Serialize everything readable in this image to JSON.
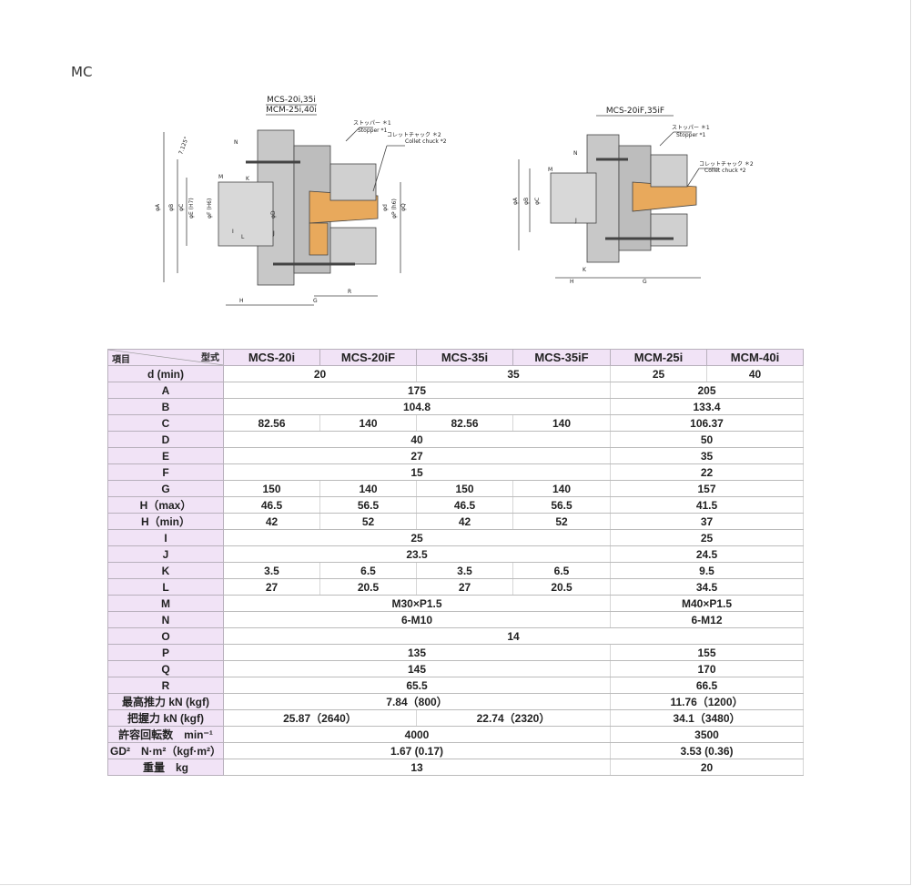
{
  "heading": "MC",
  "drawings": [
    {
      "titles": [
        "MCS-20i,35i",
        "MCM-25i,40i"
      ],
      "callouts": [
        "ストッパー ＊1",
        "Stopper *1",
        "コレットチャック ＊2",
        "Collet chuck *2"
      ],
      "dims": [
        "N",
        "M",
        "K",
        "φA",
        "φB",
        "φC",
        "φD",
        "φE (H7)",
        "φF (H6)",
        "φd",
        "φP (h6)",
        "φQ",
        "L",
        "I",
        "J",
        "H",
        "G",
        "R",
        "7.125°"
      ]
    },
    {
      "titles": [
        "MCS-20iF,35iF"
      ],
      "callouts": [
        "ストッパー ＊1",
        "Stopper *1",
        "コレットチャック ＊2",
        "Collet chuck *2"
      ],
      "dims": [
        "N",
        "M",
        "φA",
        "φB",
        "φC",
        "J",
        "K",
        "H",
        "G"
      ]
    }
  ],
  "table": {
    "corner": [
      "項目",
      "型式"
    ],
    "columns": [
      "MCS-20i",
      "MCS-20iF",
      "MCS-35i",
      "MCS-35iF",
      "MCM-25i",
      "MCM-40i"
    ],
    "rows": [
      {
        "label": "d (min)",
        "values": [
          "20",
          null,
          "35",
          null,
          "25",
          "40"
        ]
      },
      {
        "label": "A",
        "values": [
          "175",
          null,
          null,
          null,
          "205",
          null
        ]
      },
      {
        "label": "B",
        "values": [
          "104.8",
          null,
          null,
          null,
          "133.4",
          null
        ]
      },
      {
        "label": "C",
        "values": [
          "82.56",
          "140",
          "82.56",
          "140",
          "106.37",
          null
        ]
      },
      {
        "label": "D",
        "values": [
          "40",
          null,
          null,
          null,
          "50",
          null
        ]
      },
      {
        "label": "E",
        "values": [
          "27",
          null,
          null,
          null,
          "35",
          null
        ]
      },
      {
        "label": "F",
        "values": [
          "15",
          null,
          null,
          null,
          "22",
          null
        ]
      },
      {
        "label": "G",
        "values": [
          "150",
          "140",
          "150",
          "140",
          "157",
          null
        ]
      },
      {
        "label": "H（max）",
        "values": [
          "46.5",
          "56.5",
          "46.5",
          "56.5",
          "41.5",
          null
        ]
      },
      {
        "label": "H（min）",
        "values": [
          "42",
          "52",
          "42",
          "52",
          "37",
          null
        ]
      },
      {
        "label": "I",
        "values": [
          "25",
          null,
          null,
          null,
          "25",
          null
        ]
      },
      {
        "label": "J",
        "values": [
          "23.5",
          null,
          null,
          null,
          "24.5",
          null
        ]
      },
      {
        "label": "K",
        "values": [
          "3.5",
          "6.5",
          "3.5",
          "6.5",
          "9.5",
          null
        ]
      },
      {
        "label": "L",
        "values": [
          "27",
          "20.5",
          "27",
          "20.5",
          "34.5",
          null
        ]
      },
      {
        "label": "M",
        "values": [
          "M30×P1.5",
          null,
          null,
          null,
          "M40×P1.5",
          null
        ]
      },
      {
        "label": "N",
        "values": [
          "6-M10",
          null,
          null,
          null,
          "6-M12",
          null
        ]
      },
      {
        "label": "O",
        "values": [
          "14",
          null,
          null,
          null,
          null,
          null
        ]
      },
      {
        "label": "P",
        "values": [
          "135",
          null,
          null,
          null,
          "155",
          null
        ]
      },
      {
        "label": "Q",
        "values": [
          "145",
          null,
          null,
          null,
          "170",
          null
        ]
      },
      {
        "label": "R",
        "values": [
          "65.5",
          null,
          null,
          null,
          "66.5",
          null
        ]
      },
      {
        "label": "最高推力 kN (kgf)",
        "values": [
          "7.84（800）",
          null,
          null,
          null,
          "11.76（1200）",
          null
        ]
      },
      {
        "label": "把握力 kN (kgf)",
        "values": [
          "25.87（2640）",
          null,
          "22.74（2320）",
          null,
          "34.1（3480）",
          null
        ]
      },
      {
        "label": "許容回転数　min⁻¹",
        "values": [
          "4000",
          null,
          null,
          null,
          "3500",
          null
        ]
      },
      {
        "label": "GD²　N·m²（kgf·m²）",
        "values": [
          "1.67 (0.17)",
          null,
          null,
          null,
          "3.53 (0.36)",
          null
        ]
      },
      {
        "label": "重量　kg",
        "values": [
          "13",
          null,
          null,
          null,
          "20",
          null
        ]
      }
    ]
  }
}
